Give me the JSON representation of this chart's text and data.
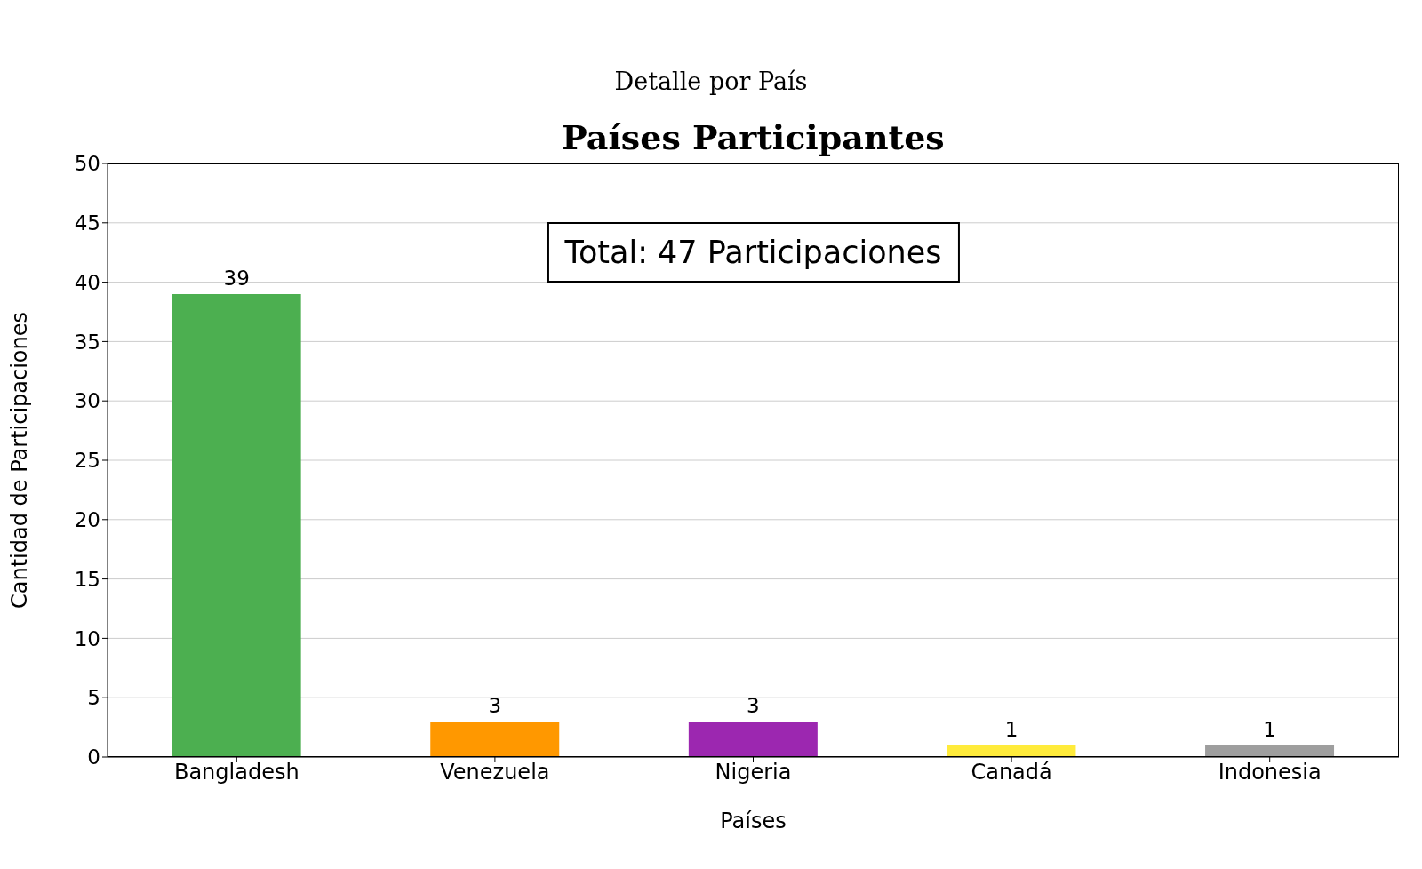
{
  "chart_data": {
    "type": "bar",
    "subtitle": "Detalle por País",
    "title": "Países Participantes",
    "xlabel": "Países",
    "ylabel": "Cantidad de Participaciones",
    "categories": [
      "Bangladesh",
      "Venezuela",
      "Nigeria",
      "Canadá",
      "Indonesia"
    ],
    "values": [
      39,
      3,
      3,
      1,
      1
    ],
    "colors": [
      "#4caf50",
      "#ff9800",
      "#9c27b0",
      "#ffeb3b",
      "#9e9e9e"
    ],
    "ylim": [
      0,
      50
    ],
    "yticks": [
      0,
      5,
      10,
      15,
      20,
      25,
      30,
      35,
      40,
      45,
      50
    ],
    "grid": "y",
    "data_labels": true,
    "annotations": [
      "Total: 47 Participaciones"
    ]
  }
}
